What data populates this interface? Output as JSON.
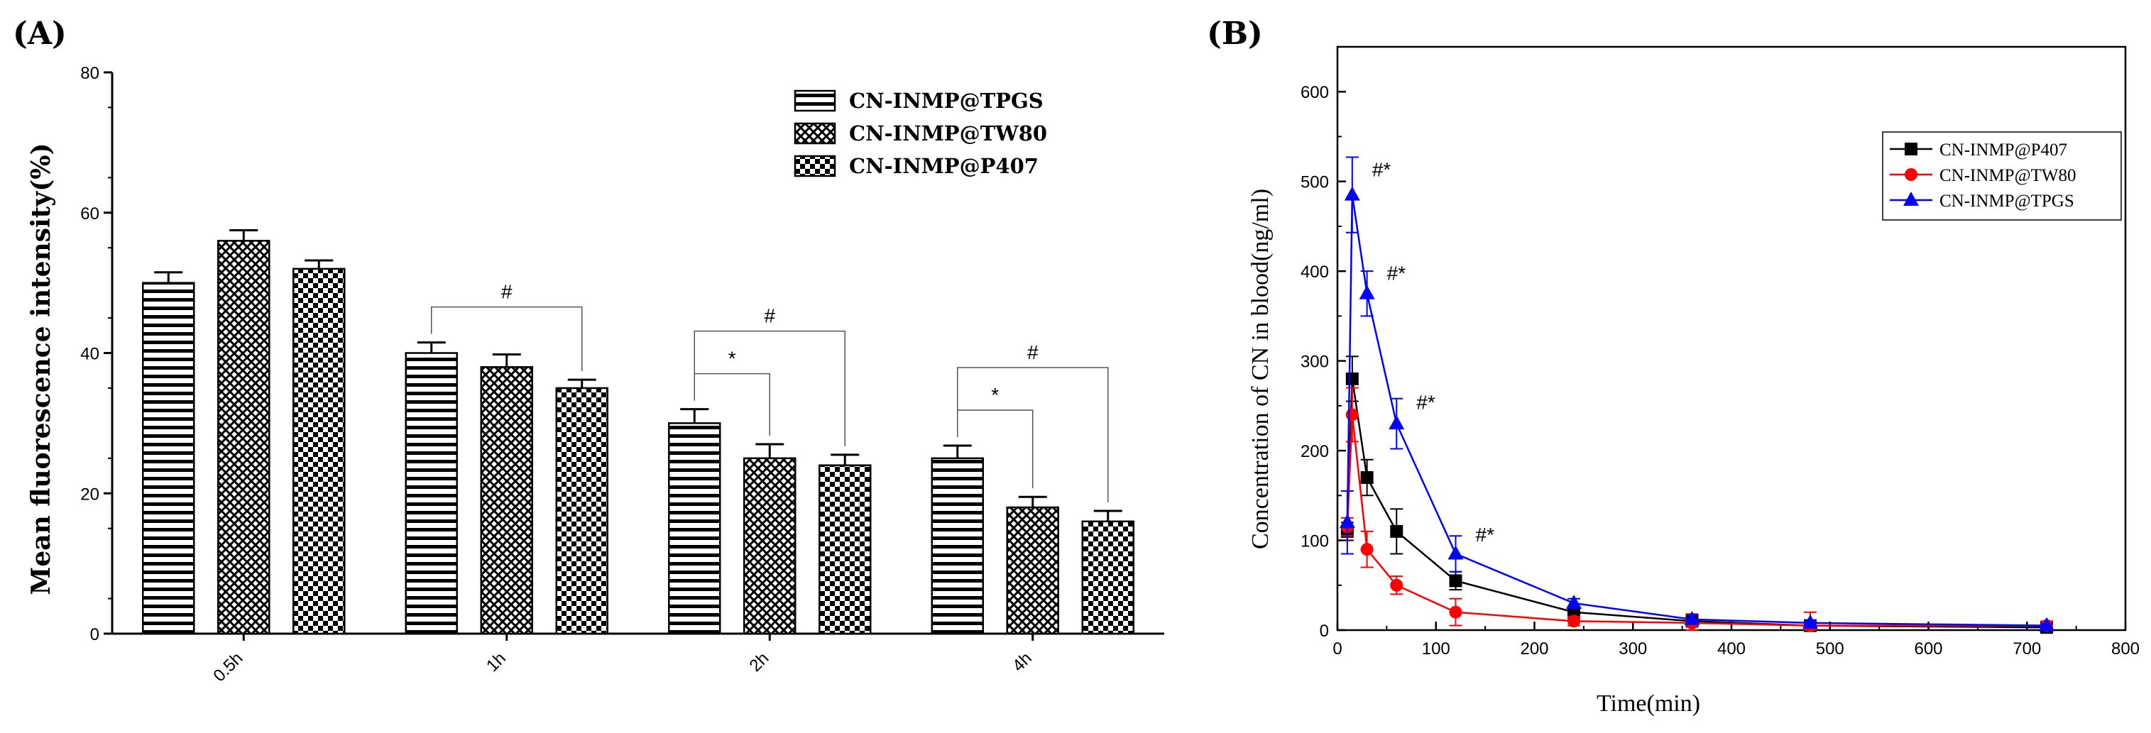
{
  "chart_data": [
    {
      "panel": "(A)",
      "type": "bar",
      "ylabel": "Mean fluorescence intensity(%)",
      "ylim": [
        0,
        80
      ],
      "yticks": [
        0,
        20,
        40,
        60,
        80
      ],
      "categories": [
        "0.5h",
        "1h",
        "2h",
        "4h"
      ],
      "legend_position": "top-right",
      "series": [
        {
          "name": "CN-INMP@TPGS",
          "pattern": "horizontal-stripes",
          "values": [
            50,
            40,
            30,
            25
          ],
          "errors": [
            1.5,
            1.5,
            2,
            1.8
          ]
        },
        {
          "name": "CN-INMP@TW80",
          "pattern": "crosshatch",
          "values": [
            56,
            38,
            25,
            18
          ],
          "errors": [
            1.5,
            1.8,
            2,
            1.5
          ]
        },
        {
          "name": "CN-INMP@P407",
          "pattern": "checkerboard",
          "values": [
            52,
            35,
            24,
            16
          ],
          "errors": [
            1.2,
            1.2,
            1.5,
            1.5
          ]
        }
      ],
      "annotations": [
        {
          "label": "#",
          "category": "1h",
          "from_series": 0,
          "to_series": 2
        },
        {
          "label": "*",
          "category": "2h",
          "from_series": 0,
          "to_series": 1
        },
        {
          "label": "#",
          "category": "2h",
          "from_series": 0,
          "to_series": 2
        },
        {
          "label": "*",
          "category": "4h",
          "from_series": 0,
          "to_series": 1
        },
        {
          "label": "#",
          "category": "4h",
          "from_series": 0,
          "to_series": 2
        }
      ]
    },
    {
      "panel": "(B)",
      "type": "line",
      "xlabel": "Time(min)",
      "ylabel": "Concentration of CN in blood(ng/ml)",
      "xlim": [
        0,
        800
      ],
      "ylim": [
        0,
        650
      ],
      "xticks": [
        0,
        100,
        200,
        300,
        400,
        500,
        600,
        700,
        800
      ],
      "yticks": [
        0,
        100,
        200,
        300,
        400,
        500,
        600
      ],
      "legend_position": "top-right",
      "x": [
        10,
        15,
        30,
        60,
        120,
        240,
        360,
        480,
        720
      ],
      "series": [
        {
          "name": "CN-INMP@P407",
          "color": "#000000",
          "marker": "square",
          "values": [
            110,
            280,
            170,
            110,
            55,
            20,
            10,
            5,
            3
          ],
          "errors": [
            10,
            25,
            20,
            25,
            10,
            5,
            5,
            3,
            2
          ]
        },
        {
          "name": "CN-INMP@TW80",
          "color": "#ff0000",
          "marker": "circle",
          "values": [
            115,
            240,
            90,
            50,
            20,
            10,
            8,
            5,
            5
          ],
          "errors": [
            10,
            30,
            20,
            10,
            15,
            5,
            10,
            15,
            5
          ]
        },
        {
          "name": "CN-INMP@TPGS",
          "color": "#0000ff",
          "marker": "triangle",
          "values": [
            120,
            485,
            375,
            230,
            85,
            30,
            12,
            8,
            5
          ],
          "errors": [
            35,
            42,
            25,
            28,
            20,
            5,
            5,
            3,
            2
          ]
        }
      ],
      "annotations": [
        {
          "label": "#*",
          "x": 15
        },
        {
          "label": "#*",
          "x": 30
        },
        {
          "label": "#*",
          "x": 60
        },
        {
          "label": "#*",
          "x": 120
        }
      ]
    }
  ]
}
